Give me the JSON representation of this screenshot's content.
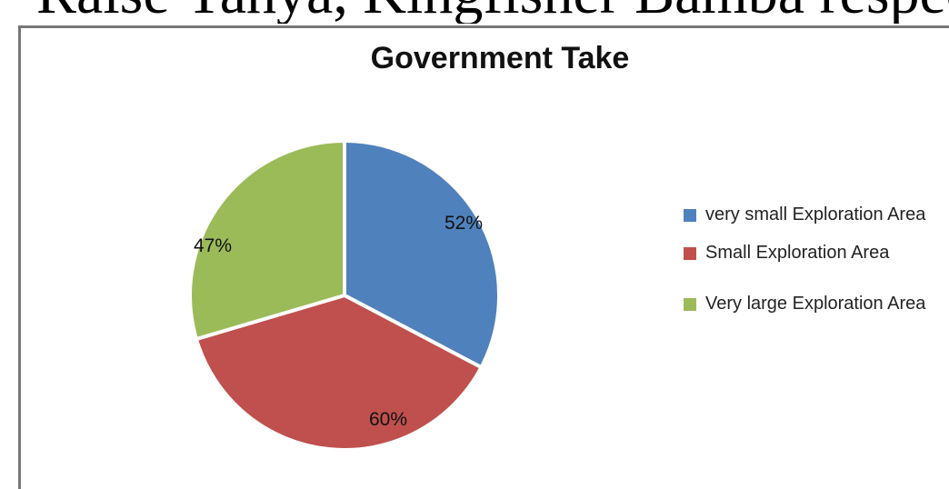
{
  "background_text": "Raise Yahya, Kingfisher Bamba respec",
  "chart_data": {
    "type": "pie",
    "title": "Government Take",
    "categories": [
      "very small Exploration Area",
      "Small Exploration Area",
      "Very large Exploration Area"
    ],
    "values": [
      52,
      60,
      47
    ],
    "labels": [
      "52%",
      "60%",
      "47%"
    ],
    "colors": [
      "#4F81BD",
      "#C0504D",
      "#9BBB59"
    ],
    "legend": "right"
  }
}
